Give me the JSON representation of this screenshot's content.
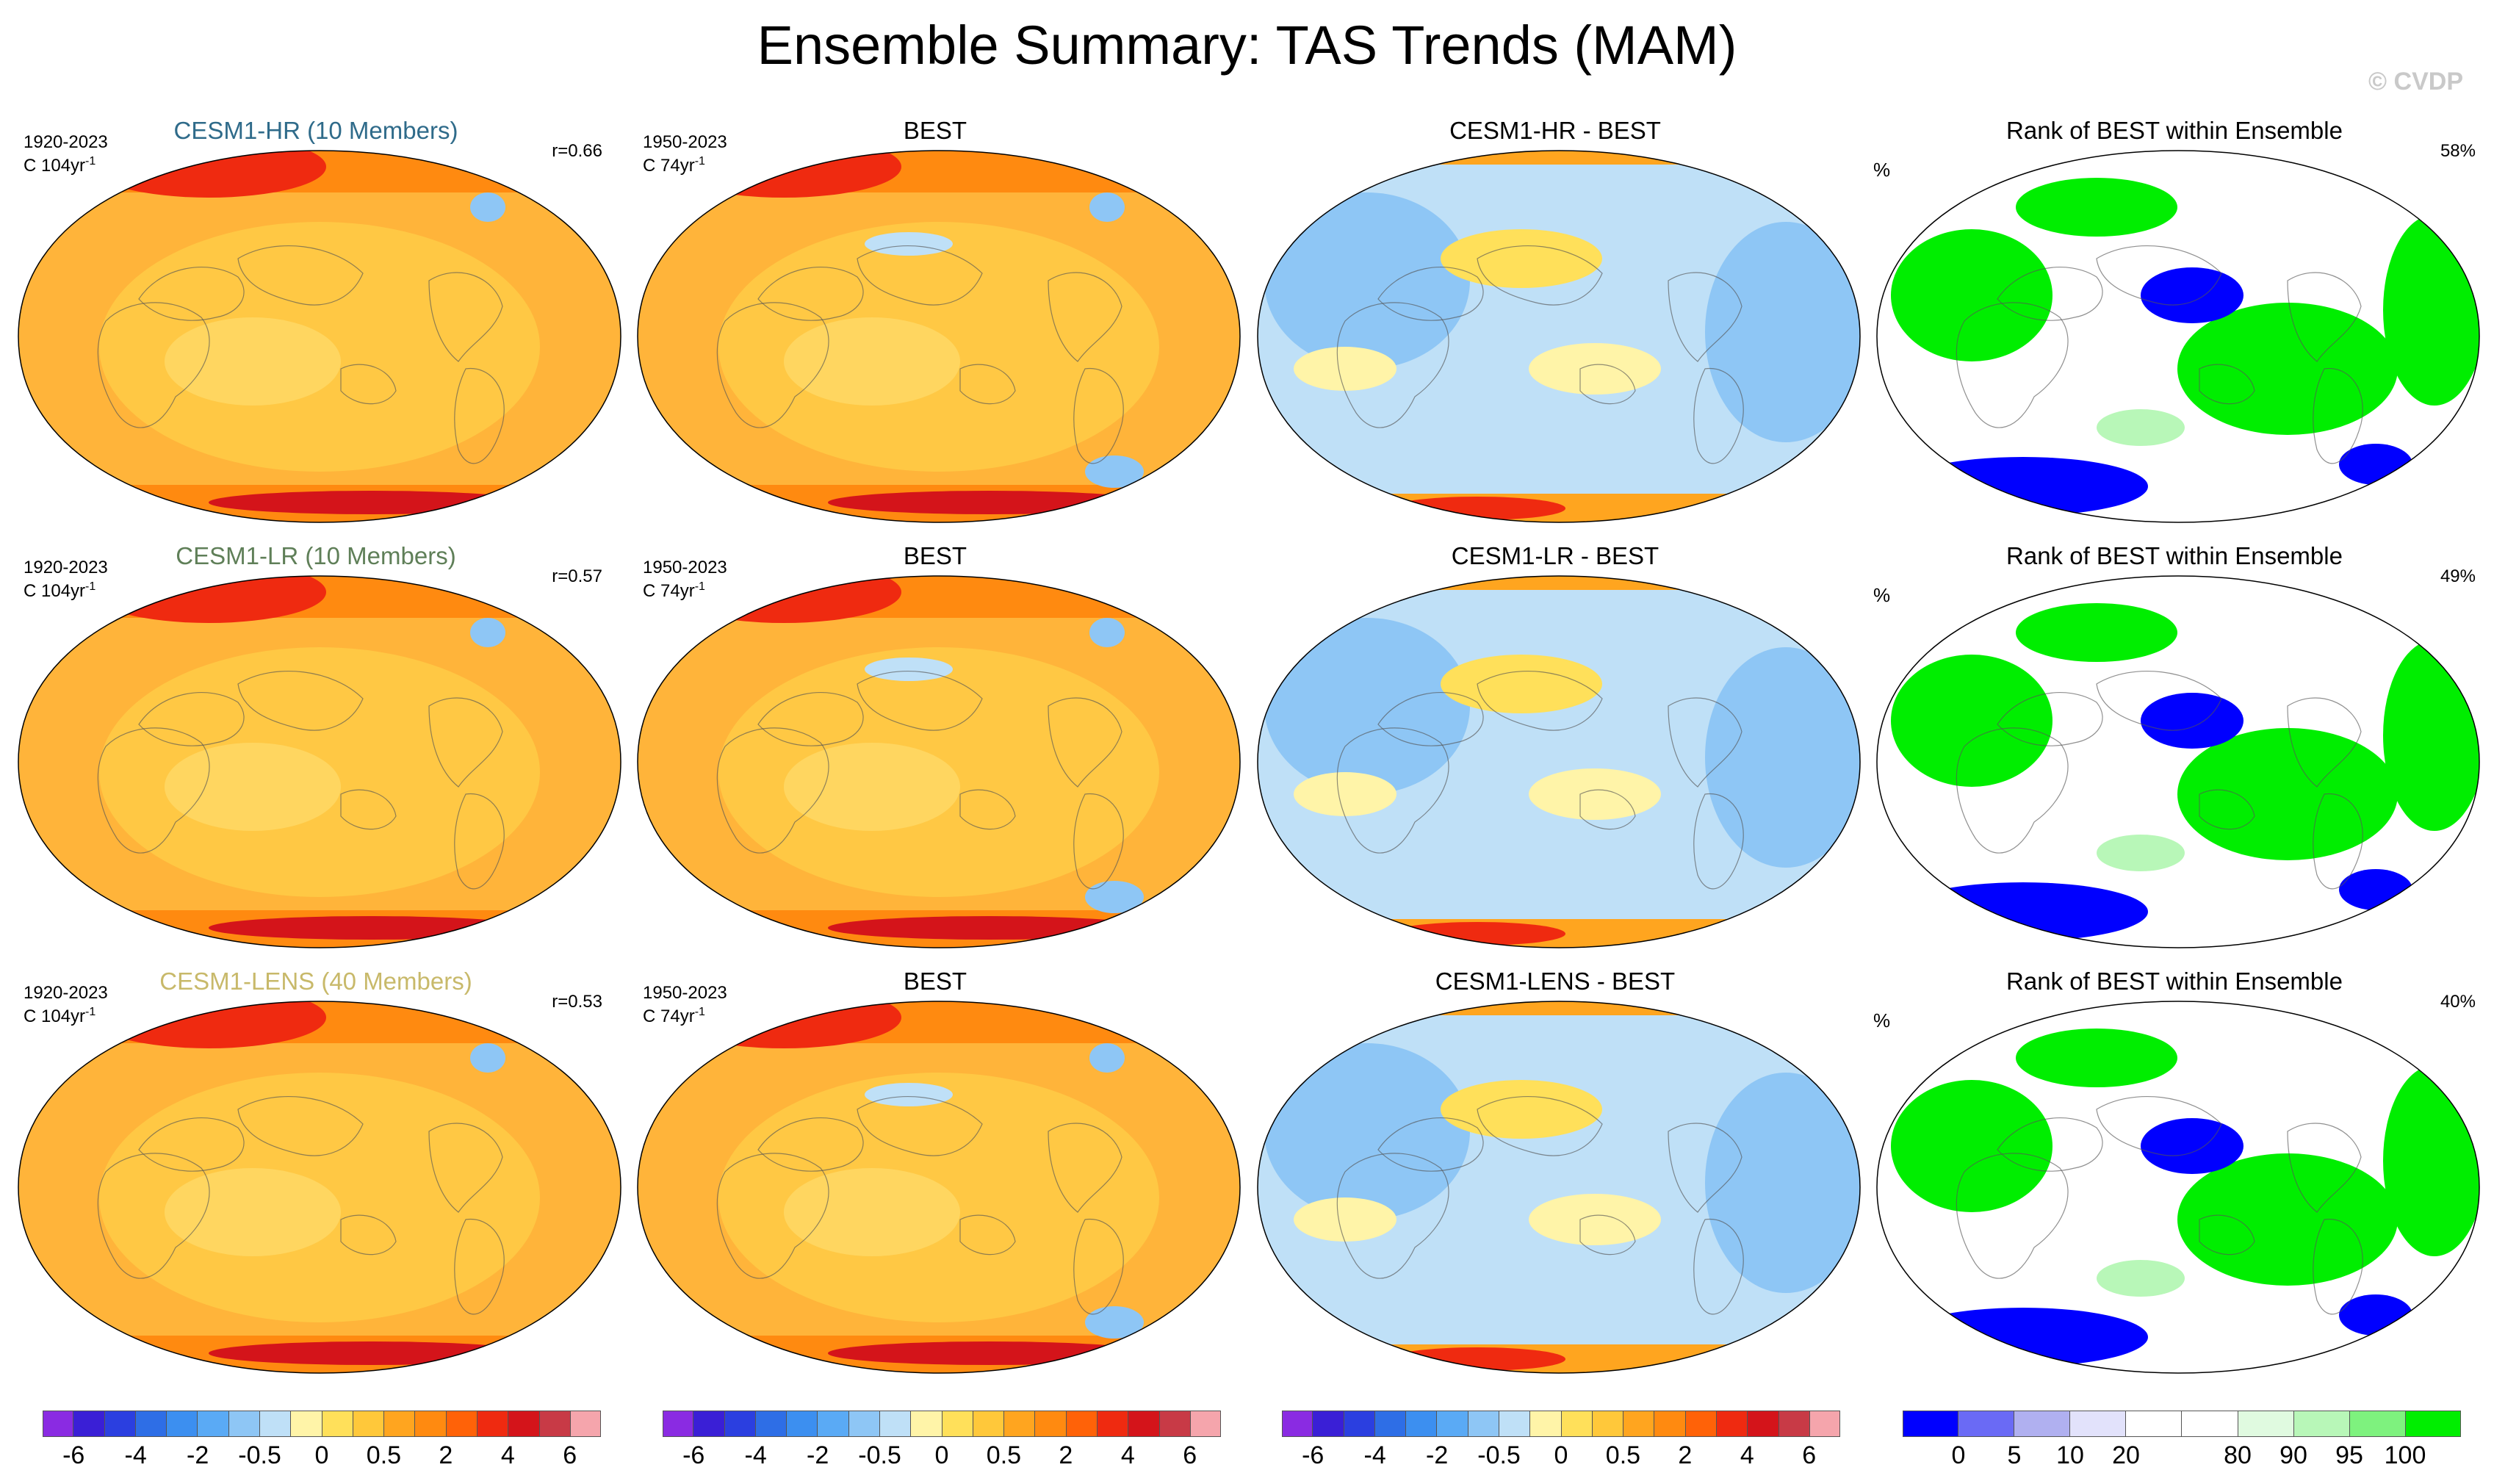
{
  "title": "Ensemble Summary: TAS Trends (MAM)",
  "copyright": "© CVDP",
  "chart_data": [
    {
      "type": "heatmap",
      "panel": "trend",
      "title": "CESM1-HR (10 Members)",
      "title_color": "#2f6b8a",
      "years": "1920-2023",
      "units_base": "C 104yr",
      "units_exp": "-1",
      "correlation": "r=0.66",
      "colormap": "trend"
    },
    {
      "type": "heatmap",
      "panel": "obs",
      "title": "BEST",
      "title_color": "#000000",
      "years": "1950-2023",
      "units_base": "C 74yr",
      "units_exp": "-1",
      "colormap": "trend"
    },
    {
      "type": "heatmap",
      "panel": "difference",
      "title": "CESM1-HR - BEST",
      "title_color": "#000000",
      "colormap": "trend"
    },
    {
      "type": "heatmap",
      "panel": "rank",
      "title": "Rank of BEST within Ensemble",
      "title_color": "#000000",
      "unit": "%",
      "score": "58%",
      "colormap": "rank"
    },
    {
      "type": "heatmap",
      "panel": "trend",
      "title": "CESM1-LR (10 Members)",
      "title_color": "#5f7f58",
      "years": "1920-2023",
      "units_base": "C 104yr",
      "units_exp": "-1",
      "correlation": "r=0.57",
      "colormap": "trend"
    },
    {
      "type": "heatmap",
      "panel": "obs",
      "title": "BEST",
      "title_color": "#000000",
      "years": "1950-2023",
      "units_base": "C 74yr",
      "units_exp": "-1",
      "colormap": "trend"
    },
    {
      "type": "heatmap",
      "panel": "difference",
      "title": "CESM1-LR - BEST",
      "title_color": "#000000",
      "colormap": "trend"
    },
    {
      "type": "heatmap",
      "panel": "rank",
      "title": "Rank of BEST within Ensemble",
      "title_color": "#000000",
      "unit": "%",
      "score": "49%",
      "colormap": "rank"
    },
    {
      "type": "heatmap",
      "panel": "trend",
      "title": "CESM1-LENS (40 Members)",
      "title_color": "#c8b96a",
      "years": "1920-2023",
      "units_base": "C 104yr",
      "units_exp": "-1",
      "correlation": "r=0.53",
      "colormap": "trend"
    },
    {
      "type": "heatmap",
      "panel": "obs",
      "title": "BEST",
      "title_color": "#000000",
      "years": "1950-2023",
      "units_base": "C 74yr",
      "units_exp": "-1",
      "colormap": "trend"
    },
    {
      "type": "heatmap",
      "panel": "difference",
      "title": "CESM1-LENS - BEST",
      "title_color": "#000000",
      "colormap": "trend"
    },
    {
      "type": "heatmap",
      "panel": "rank",
      "title": "Rank of BEST within Ensemble",
      "title_color": "#000000",
      "unit": "%",
      "score": "40%",
      "colormap": "rank"
    }
  ],
  "colorbars": {
    "trend": {
      "colors": [
        "#8a2be2",
        "#3a1fd6",
        "#2b3fe0",
        "#2e6ee6",
        "#3c8ff0",
        "#5aaaf5",
        "#8ec6f5",
        "#bfe0f7",
        "#fff4a8",
        "#ffe05a",
        "#ffc83a",
        "#ffa51f",
        "#ff8a10",
        "#ff6208",
        "#ef2a10",
        "#d4141a",
        "#c83a46",
        "#f5a5ac"
      ],
      "labels": [
        "-6",
        "-4",
        "-2",
        "-0.5",
        "0",
        "0.5",
        "2",
        "4",
        "6"
      ]
    },
    "rank": {
      "colors": [
        "#0000ff",
        "#6a6af5",
        "#b0b0f0",
        "#e2e2fb",
        "#ffffff",
        "#ffffff",
        "#e0fae0",
        "#b8f7b8",
        "#7ef27e",
        "#00ee00"
      ],
      "labels": [
        "0",
        "5",
        "10",
        "20",
        "80",
        "90",
        "95",
        "100"
      ]
    }
  }
}
